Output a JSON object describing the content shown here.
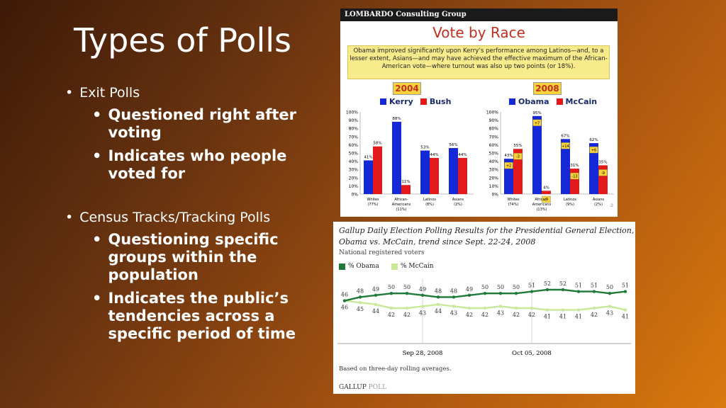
{
  "slide": {
    "title": "Types of Polls",
    "bullets": [
      {
        "text": "Exit Polls",
        "sub": [
          "Questioned right after voting",
          "Indicates who people voted for"
        ]
      },
      {
        "text": "Census Tracks/Tracking Polls",
        "sub": [
          "Questioning specific groups within the population",
          "Indicates the public’s tendencies across a specific period of time"
        ]
      }
    ],
    "bullet_char": "•"
  },
  "vote_by_race": {
    "header": "LOMBARDO Consulting Group",
    "title": "Vote by Race",
    "note": "Obama improved significantly upon Kerry’s performance among Latinos—and, to a lesser extent, Asians—and may have achieved the effective maximum of the African-American vote—where turnout was also up two points (or 18%).",
    "page_number": "3",
    "colors": {
      "blue": "#1428d8",
      "red": "#e41a1a",
      "note_bg": "#f7eb8c",
      "year_bg": "#f7d23a"
    }
  },
  "gallup": {
    "title_line1": "Gallup Daily Election Polling Results for the Presidential General Election,",
    "title_line2": "Obama vs. McCain, trend since Sept. 22-24, 2008",
    "subtitle": "National registered voters",
    "legend_obama": "% Obama",
    "legend_mccain": "% McCain",
    "footnote": "Based on three-day rolling averages.",
    "brand_a": "GALLUP",
    "brand_b": "POLL",
    "colors": {
      "obama": "#1f7a3a",
      "mccain": "#c8e89a"
    }
  },
  "chart_data": [
    {
      "type": "bar",
      "title": "2004",
      "categories": [
        "Whites (77%)",
        "African-Americans (11%)",
        "Latinos (8%)",
        "Asians (2%)"
      ],
      "series": [
        {
          "name": "Kerry",
          "values": [
            41,
            88,
            53,
            56
          ]
        },
        {
          "name": "Bush",
          "values": [
            58,
            11,
            44,
            44
          ]
        }
      ],
      "ylim": [
        0,
        100
      ],
      "yticks": [
        "0%",
        "10%",
        "20%",
        "30%",
        "40%",
        "50%",
        "60%",
        "70%",
        "80%",
        "90%",
        "100%"
      ]
    },
    {
      "type": "bar",
      "title": "2008",
      "categories": [
        "Whites (74%)",
        "African-Americans (13%)",
        "Latinos (9%)",
        "Asians (2%)"
      ],
      "series": [
        {
          "name": "Obama",
          "values": [
            43,
            95,
            67,
            62
          ],
          "changes": [
            "+2",
            "+7",
            "+14",
            "+6"
          ]
        },
        {
          "name": "McCain",
          "values": [
            55,
            4,
            31,
            35
          ],
          "changes": [
            "-3",
            "-7",
            "-13",
            "-9"
          ]
        }
      ],
      "ylim": [
        0,
        100
      ],
      "yticks": [
        "0%",
        "10%",
        "20%",
        "30%",
        "40%",
        "50%",
        "60%",
        "70%",
        "80%",
        "90%",
        "100%"
      ]
    },
    {
      "type": "line",
      "x_labels": [
        "Sep 28, 2008",
        "Oct 05, 2008"
      ],
      "series": [
        {
          "name": "% Obama",
          "values": [
            46,
            48,
            49,
            50,
            50,
            49,
            48,
            48,
            49,
            50,
            50,
            50,
            51,
            52,
            52,
            51,
            51,
            50,
            51
          ]
        },
        {
          "name": "% McCain",
          "values": [
            46,
            45,
            44,
            42,
            42,
            43,
            44,
            43,
            42,
            42,
            43,
            42,
            42,
            41,
            41,
            41,
            42,
            43,
            41
          ]
        }
      ]
    }
  ]
}
